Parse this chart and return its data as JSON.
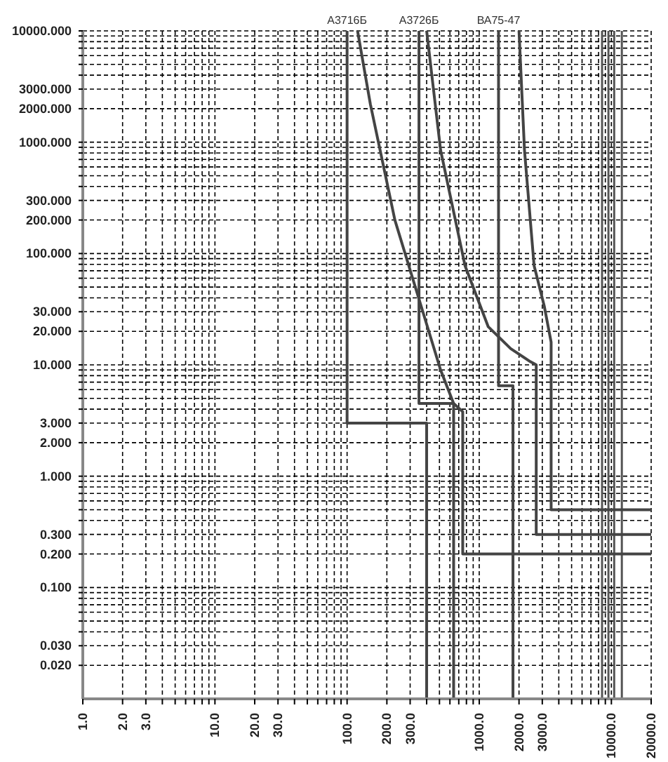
{
  "chart_data": {
    "type": "line",
    "log": "xy",
    "grid": true,
    "legend": false,
    "marker": "none",
    "line_style": "solid",
    "xlim": [
      1,
      20000
    ],
    "xticks": [
      {
        "value": 1,
        "label": "1.0"
      },
      {
        "value": 2,
        "label": "2.0"
      },
      {
        "value": 3,
        "label": "3.0"
      },
      {
        "value": 4,
        "label": null
      },
      {
        "value": 5,
        "label": null
      },
      {
        "value": 6,
        "label": null
      },
      {
        "value": 7,
        "label": null
      },
      {
        "value": 8,
        "label": null
      },
      {
        "value": 9,
        "label": null
      },
      {
        "value": 10,
        "label": "10.0"
      },
      {
        "value": 20,
        "label": "20.0"
      },
      {
        "value": 30,
        "label": "30.0"
      },
      {
        "value": 40,
        "label": null
      },
      {
        "value": 50,
        "label": null
      },
      {
        "value": 60,
        "label": null
      },
      {
        "value": 70,
        "label": null
      },
      {
        "value": 80,
        "label": null
      },
      {
        "value": 90,
        "label": null
      },
      {
        "value": 100,
        "label": "100.0"
      },
      {
        "value": 200,
        "label": "200.0"
      },
      {
        "value": 300,
        "label": "300.0"
      },
      {
        "value": 400,
        "label": null
      },
      {
        "value": 500,
        "label": null
      },
      {
        "value": 600,
        "label": null
      },
      {
        "value": 700,
        "label": null
      },
      {
        "value": 800,
        "label": null
      },
      {
        "value": 900,
        "label": null
      },
      {
        "value": 1000,
        "label": "1000.0"
      },
      {
        "value": 2000,
        "label": "2000.0"
      },
      {
        "value": 3000,
        "label": "3000.0"
      },
      {
        "value": 4000,
        "label": null
      },
      {
        "value": 5000,
        "label": null
      },
      {
        "value": 6000,
        "label": null
      },
      {
        "value": 7000,
        "label": null
      },
      {
        "value": 8000,
        "label": null
      },
      {
        "value": 9000,
        "label": null
      },
      {
        "value": 10000,
        "label": "10000.0"
      },
      {
        "value": 20000,
        "label": "20000.0"
      }
    ],
    "ylim": [
      0.01,
      10000
    ],
    "yticks": [
      {
        "value": 0.02,
        "label": "0.020"
      },
      {
        "value": 0.03,
        "label": "0.030"
      },
      {
        "value": 0.04,
        "label": null
      },
      {
        "value": 0.05,
        "label": null
      },
      {
        "value": 0.06,
        "label": null
      },
      {
        "value": 0.07,
        "label": null
      },
      {
        "value": 0.08,
        "label": null
      },
      {
        "value": 0.09,
        "label": null
      },
      {
        "value": 0.1,
        "label": "0.100"
      },
      {
        "value": 0.2,
        "label": "0.200"
      },
      {
        "value": 0.3,
        "label": "0.300"
      },
      {
        "value": 0.4,
        "label": null
      },
      {
        "value": 0.5,
        "label": null
      },
      {
        "value": 0.6,
        "label": null
      },
      {
        "value": 0.7,
        "label": null
      },
      {
        "value": 0.8,
        "label": null
      },
      {
        "value": 0.9,
        "label": null
      },
      {
        "value": 1,
        "label": "1.000"
      },
      {
        "value": 2,
        "label": "2.000"
      },
      {
        "value": 3,
        "label": "3.000"
      },
      {
        "value": 4,
        "label": null
      },
      {
        "value": 5,
        "label": null
      },
      {
        "value": 6,
        "label": null
      },
      {
        "value": 7,
        "label": null
      },
      {
        "value": 8,
        "label": null
      },
      {
        "value": 9,
        "label": null
      },
      {
        "value": 10,
        "label": "10.000"
      },
      {
        "value": 20,
        "label": "20.000"
      },
      {
        "value": 30,
        "label": "30.000"
      },
      {
        "value": 40,
        "label": null
      },
      {
        "value": 50,
        "label": null
      },
      {
        "value": 60,
        "label": null
      },
      {
        "value": 70,
        "label": null
      },
      {
        "value": 80,
        "label": null
      },
      {
        "value": 90,
        "label": null
      },
      {
        "value": 100,
        "label": "100.000"
      },
      {
        "value": 200,
        "label": "200.000"
      },
      {
        "value": 300,
        "label": "300.000"
      },
      {
        "value": 400,
        "label": null
      },
      {
        "value": 500,
        "label": null
      },
      {
        "value": 600,
        "label": null
      },
      {
        "value": 700,
        "label": null
      },
      {
        "value": 800,
        "label": null
      },
      {
        "value": 900,
        "label": null
      },
      {
        "value": 1000,
        "label": "1000.000"
      },
      {
        "value": 2000,
        "label": "2000.000"
      },
      {
        "value": 3000,
        "label": "3000.000"
      },
      {
        "value": 4000,
        "label": null
      },
      {
        "value": 5000,
        "label": null
      },
      {
        "value": 6000,
        "label": null
      },
      {
        "value": 7000,
        "label": null
      },
      {
        "value": 8000,
        "label": null
      },
      {
        "value": 9000,
        "label": null
      },
      {
        "value": 10000,
        "label": "10000.000"
      }
    ],
    "series": [
      {
        "name": "А3716Б",
        "color": "#444444",
        "x": [
          100,
          100,
          400,
          400
        ],
        "values": [
          10000,
          3,
          3,
          0.01
        ]
      },
      {
        "color": "#444444",
        "x": [
          120,
          150,
          230,
          350,
          510,
          640,
          750,
          750,
          20000
        ],
        "values": [
          10000,
          2200,
          200,
          39,
          9,
          4.5,
          3.8,
          0.2,
          0.2
        ]
      },
      {
        "name": "А3726Б",
        "color": "#444444",
        "x": [
          350,
          350,
          640,
          640
        ],
        "values": [
          10000,
          4.5,
          4.5,
          0.01
        ]
      },
      {
        "color": "#444444",
        "x": [
          400,
          510,
          780,
          1170,
          1730,
          2430,
          2700,
          2700,
          20000
        ],
        "values": [
          10000,
          850,
          78,
          22,
          14,
          10.7,
          10,
          0.3,
          0.3
        ]
      },
      {
        "name": "ВА75-47",
        "color": "#444444",
        "x": [
          1400,
          1400,
          1800,
          1800
        ],
        "values": [
          10000,
          6.5,
          6.5,
          0.01
        ]
      },
      {
        "color": "#444444",
        "x": [
          2000,
          2200,
          2600,
          3100,
          3500,
          3500,
          20000
        ],
        "values": [
          10000,
          850,
          78,
          34,
          16,
          0.5,
          0.5
        ]
      }
    ],
    "ref_lines": [
      {
        "axis": "x",
        "value": 8500,
        "color": "#555555"
      },
      {
        "axis": "x",
        "value": 9500,
        "color": "#555555"
      },
      {
        "axis": "x",
        "value": 10500,
        "color": "#555555"
      },
      {
        "axis": "x",
        "value": 12000,
        "color": "#555555"
      }
    ]
  }
}
